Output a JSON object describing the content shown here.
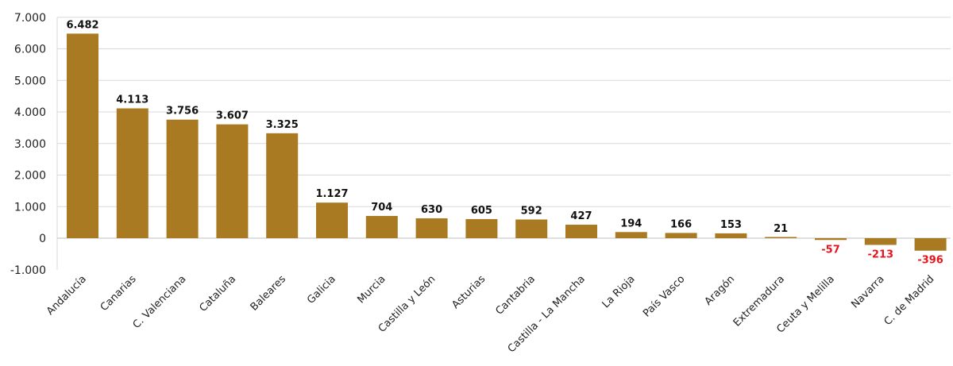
{
  "chart_data": {
    "type": "bar",
    "title": "",
    "xlabel": "",
    "ylabel": "",
    "ylim": [
      -1000,
      7000
    ],
    "yticks": [
      7000,
      6000,
      5000,
      4000,
      3000,
      2000,
      1000,
      0,
      -1000
    ],
    "ytick_labels": [
      "7.000",
      "6.000",
      "5.000",
      "4.000",
      "3.000",
      "2.000",
      "1.000",
      "0",
      "-1.000"
    ],
    "grid": true,
    "categories": [
      "Andalucía",
      "Canarias",
      "C. Valenciana",
      "Cataluña",
      "Baleares",
      "Galicia",
      "Murcia",
      "Castilla y León",
      "Asturias",
      "Cantabria",
      "Castilla - La Mancha",
      "La Rioja",
      "País Vasco",
      "Aragón",
      "Extremadura",
      "Ceuta y Melilla",
      "Navarra",
      "C. de Madrid"
    ],
    "values": [
      6482,
      4113,
      3756,
      3607,
      3325,
      1127,
      704,
      630,
      605,
      592,
      427,
      194,
      166,
      153,
      21,
      -57,
      -213,
      -396
    ],
    "value_labels": [
      "6.482",
      "4.113",
      "3.756",
      "3.607",
      "3.325",
      "1.127",
      "704",
      "630",
      "605",
      "592",
      "427",
      "194",
      "166",
      "153",
      "21",
      "-57",
      "-213",
      "-396"
    ],
    "colors": {
      "bar": "#AA7A22",
      "positive_label": "#111111",
      "negative_label": "#E8141B",
      "grid": "#D9D9D9"
    }
  }
}
